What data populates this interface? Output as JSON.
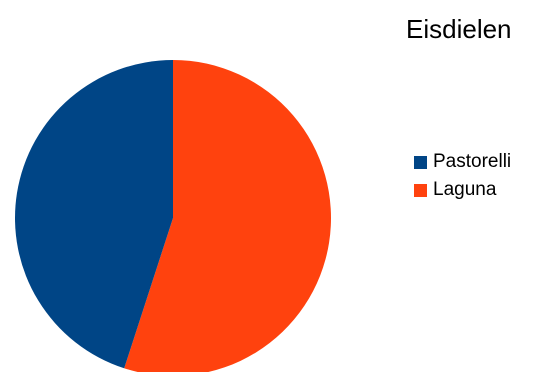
{
  "chart_data": {
    "type": "pie",
    "title": "Eisdielen",
    "categories": [
      "Pastorelli",
      "Laguna"
    ],
    "values": [
      45,
      55
    ],
    "colors": [
      "#004586",
      "#ff420e"
    ],
    "legend": "right"
  }
}
